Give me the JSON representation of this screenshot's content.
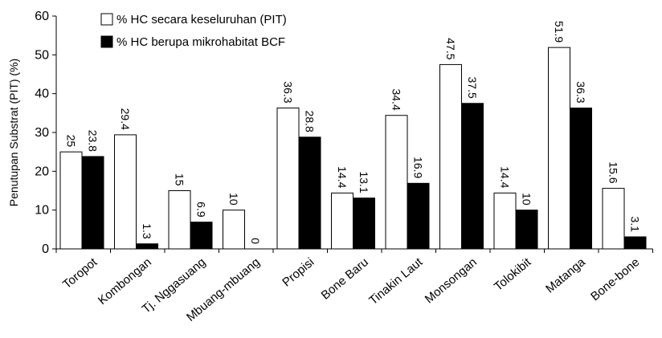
{
  "chart_data": {
    "type": "bar",
    "ylabel": "Penutupan Substrat (PIT) (%)",
    "ylim": [
      0,
      60
    ],
    "ytick_step": 10,
    "grid": false,
    "legend_position": "top-left",
    "categories": [
      "Toropot",
      "Kombongan",
      "Tj. Nggasuang",
      "Mbuang-mbuang",
      "Propisi",
      "Bone Baru",
      "Tinakin Laut",
      "Monsongan",
      "Tolokibit",
      "Matanga",
      "Bone-bone"
    ],
    "series": [
      {
        "name": "% HC secara keseluruhan (PIT)",
        "color": "#ffffff",
        "values": [
          25,
          29.4,
          15,
          10,
          36.3,
          14.4,
          34.4,
          47.5,
          14.4,
          51.9,
          15.6
        ],
        "labels": [
          "25",
          "29.4",
          "15",
          "10",
          "36.3",
          "14.4",
          "34.4",
          "47.5",
          "14.4",
          "51.9",
          "15.6"
        ]
      },
      {
        "name": "% HC berupa mikrohabitat BCF",
        "color": "#000000",
        "values": [
          23.8,
          1.3,
          6.9,
          0,
          28.8,
          13.1,
          16.9,
          37.5,
          10,
          36.3,
          3.1
        ],
        "labels": [
          "23.8",
          "1.3",
          "6.9",
          "0",
          "28.8",
          "13.1",
          "16.9",
          "37.5",
          "10",
          "36.3",
          "3.1"
        ]
      }
    ]
  }
}
